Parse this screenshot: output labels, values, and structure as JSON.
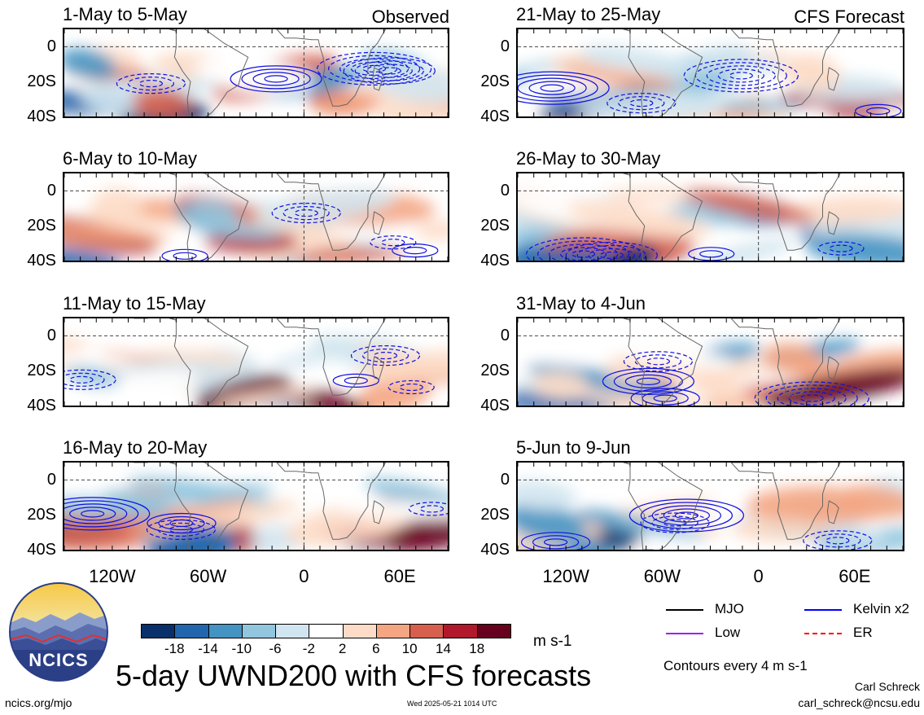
{
  "panels": [
    {
      "label": "1-May to 5-May",
      "tag": "Observed",
      "seed": 11
    },
    {
      "label": "6-May to 10-May",
      "tag": "",
      "seed": 23
    },
    {
      "label": "11-May to 15-May",
      "tag": "",
      "seed": 37
    },
    {
      "label": "16-May to 20-May",
      "tag": "",
      "seed": 41
    },
    {
      "label": "21-May to 25-May",
      "tag": "CFS Forecast",
      "seed": 53
    },
    {
      "label": "26-May to 30-May",
      "tag": "",
      "seed": 67
    },
    {
      "label": "31-May to 4-Jun",
      "tag": "",
      "seed": 71
    },
    {
      "label": "5-Jun to 9-Jun",
      "tag": "",
      "seed": 89
    }
  ],
  "lat_labels": [
    "0",
    "20S",
    "40S"
  ],
  "lon_labels": [
    "120W",
    "60W",
    "0",
    "60E"
  ],
  "colorbar": {
    "colors": [
      "#08306b",
      "#2166ac",
      "#4393c3",
      "#92c5de",
      "#d1e5f0",
      "#ffffff",
      "#fddbc7",
      "#f4a582",
      "#d6604d",
      "#b2182b",
      "#67001f"
    ],
    "ticks": [
      "-18",
      "-14",
      "-10",
      "-6",
      "-2",
      "2",
      "6",
      "10",
      "14",
      "18"
    ],
    "unit": "m s-1"
  },
  "legend": [
    {
      "label": "MJO",
      "color": "#000000",
      "style": "solid"
    },
    {
      "label": "Kelvin x2",
      "color": "#0000ff",
      "style": "solid"
    },
    {
      "label": "Low",
      "color": "#a020f0",
      "style": "solid"
    },
    {
      "label": "ER",
      "color": "#ff0000",
      "style": "dashed"
    }
  ],
  "contour_note": "Contours every 4 m s-1",
  "main_title": "5-day UWND200 with CFS forecasts",
  "logo_text": "NCICS",
  "url": "ncics.org/mjo",
  "timestamp": "Wed 2025-05-21 1014 UTC",
  "author": "Carl Schreck",
  "email": "carl_schreck@ncsu.edu"
}
